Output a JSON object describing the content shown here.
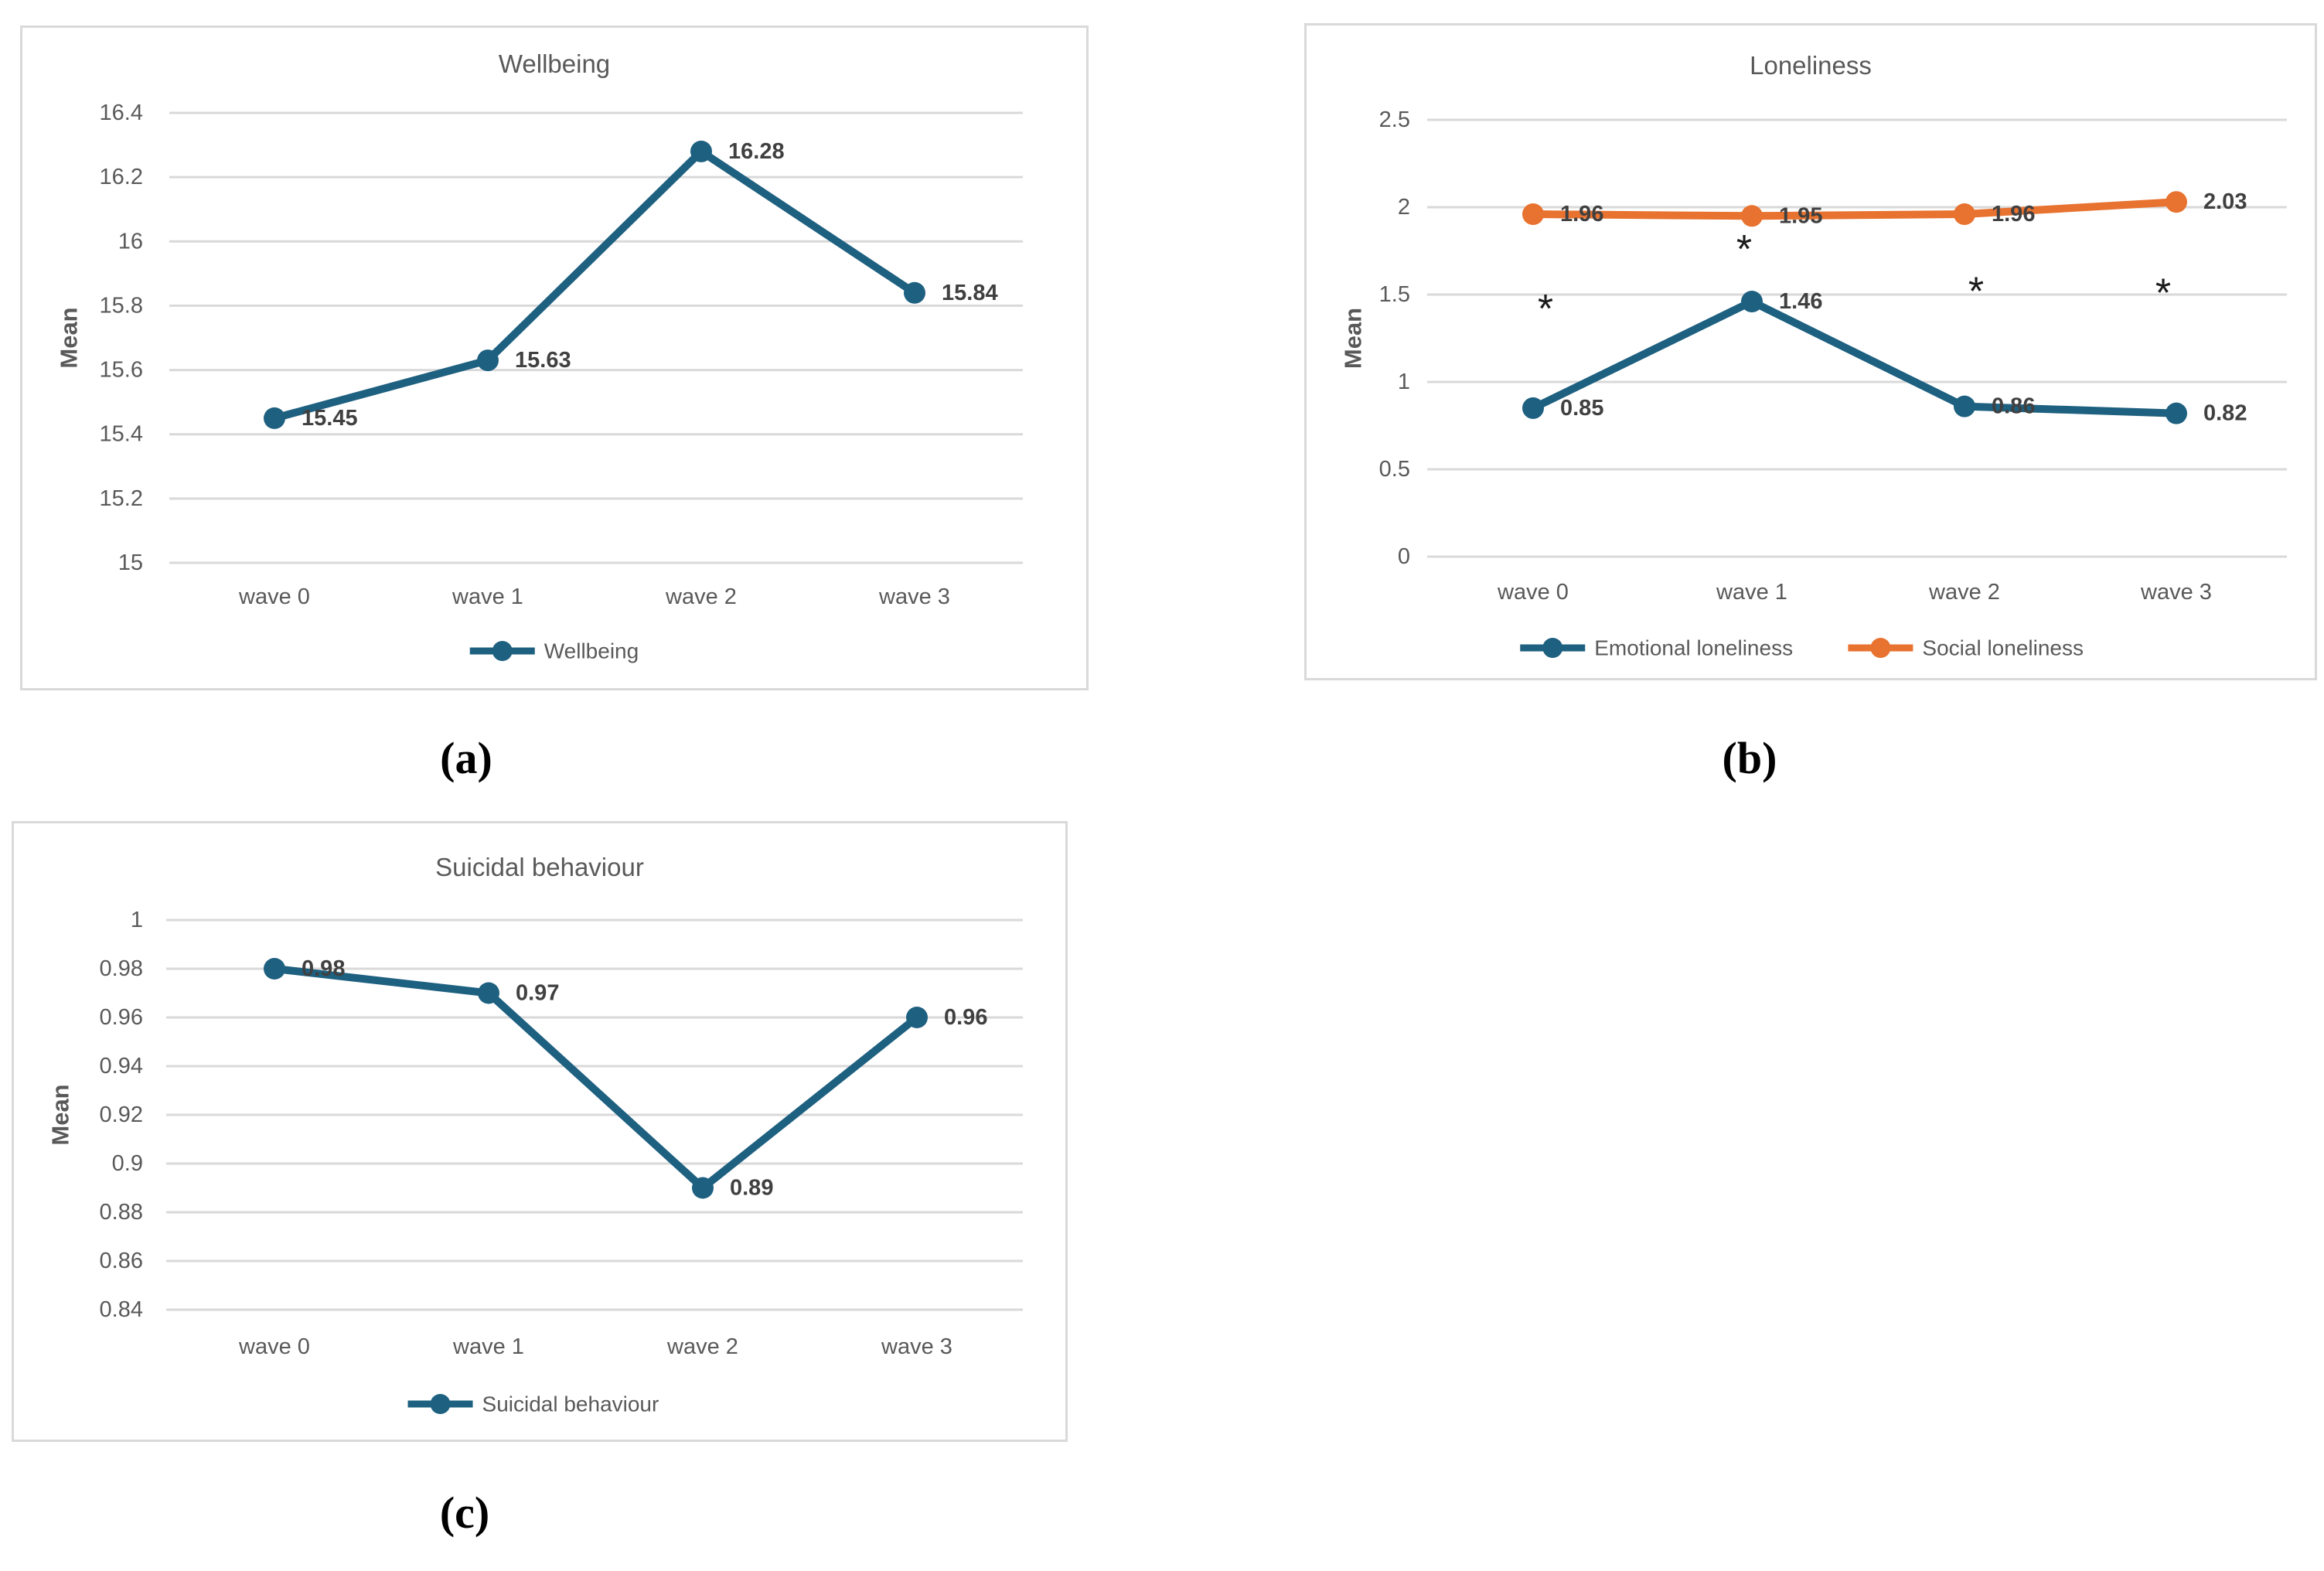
{
  "colors": {
    "series_blue": "#1E6080",
    "series_orange": "#E8722F",
    "gridline": "#D9D9D9",
    "panel_border": "#D9D9D9",
    "axis_text": "#595959",
    "data_label_text": "#404040",
    "annotation_text": "#1A1A1A",
    "background": "#FFFFFF"
  },
  "captions": {
    "a": "(a)",
    "b": "(b)",
    "c": "(c)"
  },
  "chart_data": [
    {
      "id": "wellbeing",
      "type": "line",
      "title": "Wellbeing",
      "ylabel": "Mean",
      "xlabel": "",
      "categories": [
        "wave 0",
        "wave 1",
        "wave 2",
        "wave 3"
      ],
      "ylim": [
        15,
        16.4
      ],
      "ystep": 0.2,
      "ytick_labels": [
        "15",
        "15.2",
        "15.4",
        "15.6",
        "15.8",
        "16",
        "16.2",
        "16.4"
      ],
      "grid": true,
      "legend_position": "bottom",
      "series": [
        {
          "name": "Wellbeing",
          "color": "series_blue",
          "values": [
            15.45,
            15.63,
            16.28,
            15.84
          ],
          "data_labels": [
            "15.45",
            "15.63",
            "16.28",
            "15.84"
          ]
        }
      ]
    },
    {
      "id": "loneliness",
      "type": "line",
      "title": "Loneliness",
      "ylabel": "Mean",
      "xlabel": "",
      "categories": [
        "wave 0",
        "wave 1",
        "wave 2",
        "wave 3"
      ],
      "ylim": [
        0,
        2.5
      ],
      "ystep": 0.5,
      "ytick_labels": [
        "0",
        "0.5",
        "1",
        "1.5",
        "2",
        "2.5"
      ],
      "grid": true,
      "legend_position": "bottom",
      "series": [
        {
          "name": "Emotional loneliness",
          "color": "series_blue",
          "values": [
            0.85,
            1.46,
            0.86,
            0.82
          ],
          "data_labels": [
            "0.85",
            "1.46",
            "0.86",
            "0.82"
          ]
        },
        {
          "name": "Social loneliness",
          "color": "series_orange",
          "values": [
            1.96,
            1.95,
            1.96,
            2.03
          ],
          "data_labels": [
            "1.96",
            "1.95",
            "1.96",
            "2.03"
          ]
        }
      ],
      "annotations": [
        {
          "text": "*",
          "category_index": 0,
          "y": 1.42
        },
        {
          "text": "*",
          "category_index": 1,
          "y": 1.76
        },
        {
          "text": "*",
          "category_index": 2,
          "y": 1.52
        },
        {
          "text": "*",
          "category_index": 3,
          "y": 1.51
        }
      ]
    },
    {
      "id": "suicidal",
      "type": "line",
      "title": "Suicidal behaviour",
      "ylabel": "Mean",
      "xlabel": "",
      "categories": [
        "wave 0",
        "wave 1",
        "wave 2",
        "wave 3"
      ],
      "ylim": [
        0.84,
        1.0
      ],
      "ystep": 0.02,
      "ytick_labels": [
        "0.84",
        "0.86",
        "0.88",
        "0.9",
        "0.92",
        "0.94",
        "0.96",
        "0.98",
        "1"
      ],
      "grid": true,
      "legend_position": "bottom",
      "series": [
        {
          "name": "Suicidal behaviour",
          "color": "series_blue",
          "values": [
            0.98,
            0.97,
            0.89,
            0.96
          ],
          "data_labels": [
            "0.98",
            "0.97",
            "0.89",
            "0.96"
          ]
        }
      ]
    }
  ]
}
